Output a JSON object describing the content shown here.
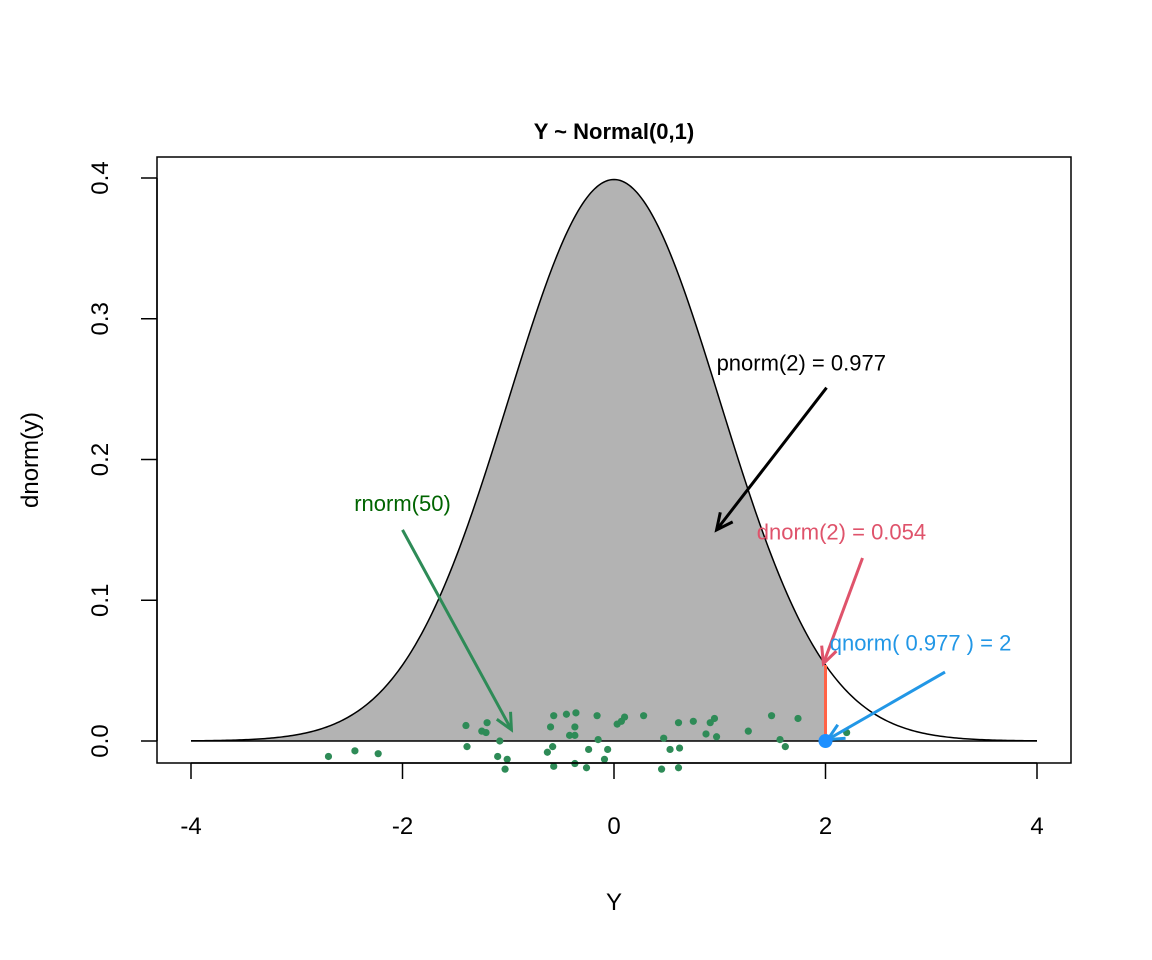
{
  "chart_data": {
    "type": "area",
    "title": "Y ~ Normal(0,1)",
    "xlabel": "Y",
    "ylabel": "dnorm(y)",
    "xlim": [
      -4,
      4
    ],
    "ylim": [
      0,
      0.4
    ],
    "x_ticks": [
      "-4",
      "-2",
      "0",
      "2",
      "4"
    ],
    "y_ticks": [
      "0.0",
      "0.1",
      "0.2",
      "0.3",
      "0.4"
    ],
    "grid": false,
    "curve": {
      "function": "dnorm",
      "mean": 0,
      "sd": 1,
      "range": [
        -4,
        4
      ],
      "color": "#000000"
    },
    "shaded_region": {
      "from": -4,
      "to": 2,
      "color": "#B3B3B3"
    },
    "random_points": {
      "color": "#2E8B57",
      "x": [
        -2.7,
        -2.45,
        -2.23,
        -1.4,
        -1.39,
        -1.2,
        -1.25,
        -1.21,
        -1.08,
        -1.1,
        -1.01,
        -1.03,
        -0.57,
        -0.45,
        -0.36,
        -0.6,
        -0.42,
        -0.37,
        -0.63,
        -0.58,
        -0.57,
        -0.37,
        -0.16,
        0.03,
        0.1,
        0.07,
        0.28,
        -0.15,
        -0.24,
        -0.06,
        -0.09,
        -0.26,
        0.47,
        0.53,
        0.62,
        0.45,
        0.61,
        0.61,
        0.75,
        0.91,
        0.95,
        0.87,
        0.97,
        1.27,
        1.49,
        1.74,
        1.57,
        1.62,
        2.2,
        -0.37
      ],
      "y": [
        -0.011,
        -0.007,
        -0.009,
        0.011,
        -0.004,
        0.013,
        0.007,
        0.006,
        0.0,
        -0.011,
        -0.013,
        -0.02,
        0.018,
        0.019,
        0.02,
        0.01,
        0.004,
        0.01,
        -0.008,
        -0.004,
        -0.018,
        -0.016,
        0.018,
        0.012,
        0.017,
        0.014,
        0.018,
        0.001,
        -0.006,
        -0.006,
        -0.013,
        -0.019,
        0.002,
        -0.006,
        -0.005,
        -0.02,
        -0.019,
        0.013,
        0.014,
        0.013,
        0.016,
        0.005,
        0.003,
        0.007,
        0.018,
        0.016,
        0.001,
        -0.004,
        0.006,
        0.004
      ]
    },
    "annotations": [
      {
        "text": "pnorm(2) =  0.977",
        "x": 0.97,
        "y": 0.269,
        "anchor": "start",
        "color": "#000000",
        "arrow": {
          "from": [
            2.01,
            0.251
          ],
          "to": [
            0.97,
            0.15
          ]
        }
      },
      {
        "text": "rnorm(50)",
        "x": -2.0,
        "y": 0.169,
        "anchor": "middle",
        "color": "#006400",
        "arrow": {
          "from": [
            -2.0,
            0.15
          ],
          "to": [
            -0.97,
            0.008
          ],
          "color": "#2E8B57"
        }
      },
      {
        "text": "dnorm(2) = 0.054",
        "x": 1.35,
        "y": 0.149,
        "anchor": "start",
        "color": "#DF536B",
        "arrow": {
          "from": [
            2.35,
            0.13
          ],
          "to": [
            1.98,
            0.055
          ]
        }
      },
      {
        "text": "qnorm( 0.977 ) = 2",
        "x": 2.04,
        "y": 0.07,
        "anchor": "start",
        "color": "#2297E6",
        "arrow": {
          "from": [
            3.13,
            0.049
          ],
          "to": [
            2.02,
            0.001
          ]
        }
      }
    ],
    "density_segment": {
      "x": 2,
      "y0": 0,
      "y1": 0.054,
      "color": "#FF6347"
    },
    "quantile_point": {
      "x": 2,
      "y": 0,
      "color": "#1E90FF"
    }
  }
}
